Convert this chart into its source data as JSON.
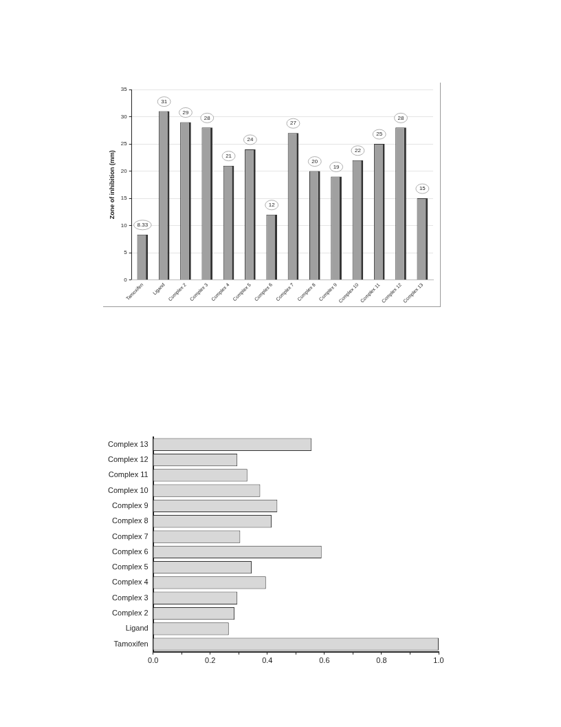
{
  "chart_data": [
    {
      "type": "bar",
      "ylabel": "Zone of inhibition (mm)",
      "categories": [
        "Tamoxifen",
        "Ligand",
        "Complex 2",
        "Complex 3",
        "Complex 4",
        "Complex 5",
        "Complex 6",
        "Complex 7",
        "Complex 8",
        "Complex 9",
        "Complex 10",
        "Complex 11",
        "Complex 12",
        "Complex 13"
      ],
      "values": [
        8.33,
        31,
        29,
        28,
        21,
        24,
        12,
        27,
        20,
        19,
        22,
        25,
        28,
        15
      ],
      "color": "#a0a0a0",
      "ylim": [
        0,
        35
      ],
      "yticks": [
        0,
        5,
        10,
        15,
        20,
        25,
        30,
        35
      ],
      "grid": "y",
      "data_labels": true
    },
    {
      "type": "bar",
      "orientation": "horizontal",
      "categories": [
        "Complex 13",
        "Complex 12",
        "Complex 11",
        "Complex 10",
        "Complex 9",
        "Complex 8",
        "Complex 7",
        "Complex 6",
        "Complex 5",
        "Complex 4",
        "Complex 3",
        "Complex 2",
        "Ligand",
        "Tamoxifen"
      ],
      "values": [
        0.555,
        0.295,
        0.33,
        0.375,
        0.435,
        0.415,
        0.305,
        0.59,
        0.345,
        0.395,
        0.295,
        0.285,
        0.265,
        1.0
      ],
      "color": "#d8d8d8",
      "xlim": [
        0,
        1
      ],
      "xticks": [
        {
          "value": 0,
          "label": "0.0"
        },
        {
          "value": 0.1,
          "label": null
        },
        {
          "value": 0.2,
          "label": "0.2"
        },
        {
          "value": 0.3,
          "label": null
        },
        {
          "value": 0.4,
          "label": "0.4"
        },
        {
          "value": 0.5,
          "label": null
        },
        {
          "value": 0.6,
          "label": "0.6"
        },
        {
          "value": 0.7,
          "label": null
        },
        {
          "value": 0.8,
          "label": "0.8"
        },
        {
          "value": 0.9,
          "label": null
        },
        {
          "value": 1,
          "label": "1.0"
        }
      ],
      "grid": false
    }
  ]
}
